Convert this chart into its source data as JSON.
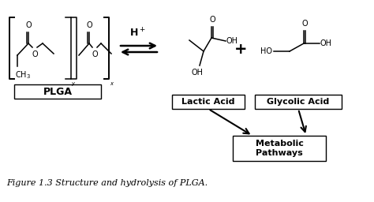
{
  "bg_color": "#ffffff",
  "black": "#000000",
  "figure_caption": "Figure 1.3 Structure and hydrolysis of PLGA.",
  "labels": {
    "plga": "PLGA",
    "lactic_acid": "Lactic Acid",
    "glycolic_acid": "Glycolic Acid",
    "metabolic": "Metabolic\nPathways",
    "hplus": "H$^+$",
    "plus": "+"
  },
  "figsize": [
    4.74,
    2.56
  ],
  "dpi": 100
}
